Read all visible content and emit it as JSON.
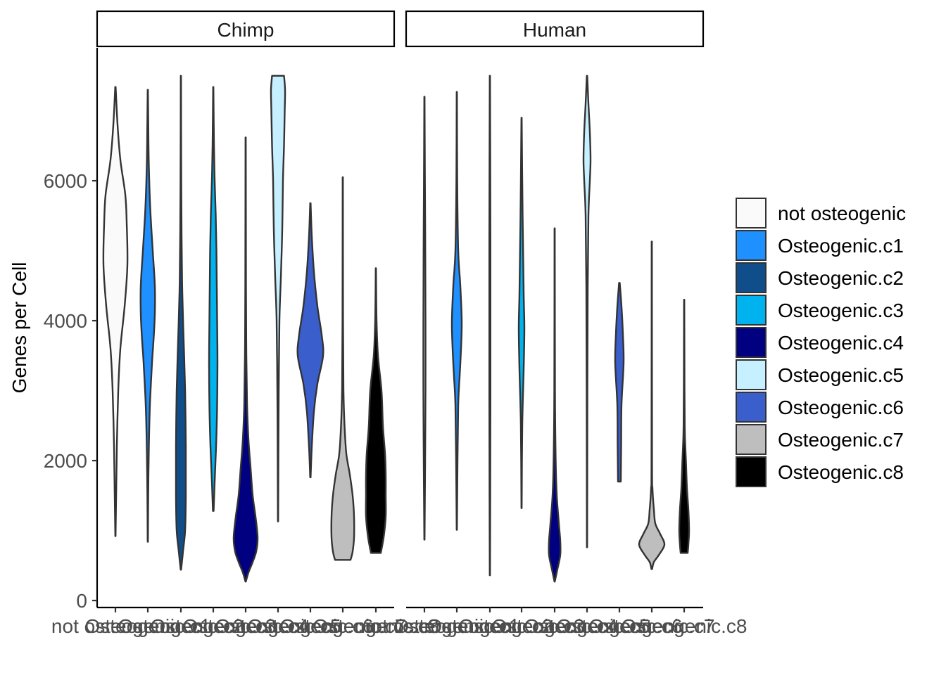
{
  "chart_data": {
    "type": "violin",
    "ylabel": "Genes per Cell",
    "yticks": [
      0,
      2000,
      4000,
      6000
    ],
    "ylim": [
      -100,
      7900
    ],
    "facets": [
      "Chimp",
      "Human"
    ],
    "categories": [
      "not osteogenic",
      "Osteogenic.c1",
      "Osteogenic.c2",
      "Osteogenic.c3",
      "Osteogenic.c4",
      "Osteogenic.c5",
      "Osteogenic.c6",
      "Osteogenic.c7",
      "Osteogenic.c8"
    ],
    "colors": [
      "#FAFAFA",
      "#1E90FF",
      "#104E8B",
      "#00B2EE",
      "#000080",
      "#C6EFFF",
      "#3A5FCD",
      "#BEBEBE",
      "#000000"
    ],
    "legend": {
      "position": "right"
    },
    "panels": [
      {
        "facet": "Chimp",
        "violins": [
          {
            "category": "not osteogenic",
            "profile": [
              [
                920,
                0.2
              ],
              [
                1500,
                1
              ],
              [
                2200,
                2
              ],
              [
                3000,
                4
              ],
              [
                3600,
                7
              ],
              [
                4200,
                13
              ],
              [
                4800,
                17
              ],
              [
                5400,
                16
              ],
              [
                5800,
                14
              ],
              [
                6300,
                7
              ],
              [
                6800,
                3
              ],
              [
                7340,
                0.3
              ]
            ]
          },
          {
            "category": "Osteogenic.c1",
            "profile": [
              [
                840,
                0.2
              ],
              [
                1500,
                0.6
              ],
              [
                2200,
                1.5
              ],
              [
                2800,
                3
              ],
              [
                3400,
                6
              ],
              [
                3700,
                8
              ],
              [
                4100,
                10
              ],
              [
                4500,
                10
              ],
              [
                5000,
                7
              ],
              [
                5600,
                3.5
              ],
              [
                6200,
                1.5
              ],
              [
                6800,
                0.7
              ],
              [
                7300,
                0.2
              ]
            ]
          },
          {
            "category": "Osteogenic.c2",
            "profile": [
              [
                440,
                0.3
              ],
              [
                700,
                3
              ],
              [
                1000,
                6
              ],
              [
                1500,
                7
              ],
              [
                2200,
                7
              ],
              [
                3000,
                6
              ],
              [
                3700,
                4
              ],
              [
                4400,
                2
              ],
              [
                5200,
                1
              ],
              [
                6400,
                0.4
              ],
              [
                7500,
                0.2
              ]
            ]
          },
          {
            "category": "Osteogenic.c3",
            "profile": [
              [
                1280,
                0.5
              ],
              [
                1700,
                2
              ],
              [
                2200,
                4
              ],
              [
                2800,
                5.5
              ],
              [
                3400,
                6
              ],
              [
                4000,
                5.5
              ],
              [
                4500,
                5
              ],
              [
                5000,
                4.5
              ],
              [
                5500,
                3.5
              ],
              [
                6000,
                2
              ],
              [
                6500,
                1
              ],
              [
                7340,
                0.2
              ]
            ]
          },
          {
            "category": "Osteogenic.c4",
            "profile": [
              [
                270,
                0.3
              ],
              [
                400,
                4
              ],
              [
                550,
                10
              ],
              [
                700,
                15
              ],
              [
                900,
                17
              ],
              [
                1200,
                14
              ],
              [
                1500,
                10
              ],
              [
                1900,
                7
              ],
              [
                2300,
                4
              ],
              [
                2800,
                2
              ],
              [
                3500,
                1
              ],
              [
                4500,
                0.5
              ],
              [
                6620,
                0.2
              ]
            ]
          },
          {
            "category": "Osteogenic.c5",
            "profile": [
              [
                1130,
                0.2
              ],
              [
                2000,
                0.5
              ],
              [
                3000,
                1
              ],
              [
                4000,
                2
              ],
              [
                4600,
                4
              ],
              [
                5300,
                6
              ],
              [
                6000,
                7
              ],
              [
                6500,
                8.5
              ],
              [
                7000,
                9.5
              ],
              [
                7300,
                10
              ],
              [
                7500,
                8.5
              ]
            ]
          },
          {
            "category": "Osteogenic.c6",
            "profile": [
              [
                1760,
                0.3
              ],
              [
                2200,
                2
              ],
              [
                2700,
                5
              ],
              [
                3100,
                10
              ],
              [
                3500,
                18
              ],
              [
                3800,
                16
              ],
              [
                4200,
                10
              ],
              [
                4700,
                5
              ],
              [
                5200,
                2
              ],
              [
                5680,
                0.3
              ]
            ]
          },
          {
            "category": "Osteogenic.c7",
            "profile": [
              [
                580,
                11
              ],
              [
                700,
                14
              ],
              [
                900,
                16
              ],
              [
                1200,
                16
              ],
              [
                1500,
                14
              ],
              [
                1800,
                10
              ],
              [
                2100,
                5
              ],
              [
                2500,
                2.5
              ],
              [
                3000,
                1
              ],
              [
                4000,
                0.4
              ],
              [
                6050,
                0.2
              ]
            ]
          },
          {
            "category": "Osteogenic.c8",
            "profile": [
              [
                680,
                7
              ],
              [
                900,
                11
              ],
              [
                1200,
                14
              ],
              [
                1500,
                14
              ],
              [
                1800,
                14
              ],
              [
                2100,
                13
              ],
              [
                2500,
                10
              ],
              [
                3000,
                8
              ],
              [
                3500,
                3
              ],
              [
                4000,
                1
              ],
              [
                4750,
                0.2
              ]
            ]
          }
        ]
      },
      {
        "facet": "Human",
        "violins": [
          {
            "category": "not osteogenic",
            "profile": [
              [
                870,
                0.2
              ],
              [
                2000,
                1
              ],
              [
                3000,
                1.5
              ],
              [
                4000,
                1.5
              ],
              [
                5000,
                1.2
              ],
              [
                6000,
                0.7
              ],
              [
                7200,
                0.2
              ]
            ]
          },
          {
            "category": "Osteogenic.c1",
            "profile": [
              [
                1010,
                0.2
              ],
              [
                2000,
                1
              ],
              [
                2800,
                2
              ],
              [
                3200,
                4
              ],
              [
                3600,
                6
              ],
              [
                4000,
                7
              ],
              [
                4500,
                5
              ],
              [
                5000,
                2
              ],
              [
                6000,
                0.6
              ],
              [
                7270,
                0.2
              ]
            ]
          },
          {
            "category": "Osteogenic.c2",
            "profile": [
              [
                360,
                0.2
              ],
              [
                1500,
                0.5
              ],
              [
                3000,
                0.8
              ],
              [
                5000,
                0.8
              ],
              [
                7500,
                0.2
              ]
            ]
          },
          {
            "category": "Osteogenic.c3",
            "profile": [
              [
                1320,
                0.2
              ],
              [
                2500,
                1
              ],
              [
                3300,
                3
              ],
              [
                3900,
                4
              ],
              [
                4400,
                3
              ],
              [
                5500,
                1.5
              ],
              [
                6900,
                0.2
              ]
            ]
          },
          {
            "category": "Osteogenic.c4",
            "profile": [
              [
                270,
                0.2
              ],
              [
                450,
                4
              ],
              [
                650,
                8
              ],
              [
                850,
                8
              ],
              [
                1100,
                6
              ],
              [
                1500,
                3
              ],
              [
                2000,
                1.5
              ],
              [
                3000,
                0.5
              ],
              [
                5320,
                0.2
              ]
            ]
          },
          {
            "category": "Osteogenic.c5",
            "profile": [
              [
                760,
                0.2
              ],
              [
                3000,
                0.5
              ],
              [
                4500,
                1
              ],
              [
                5500,
                2
              ],
              [
                6000,
                4
              ],
              [
                6300,
                5
              ],
              [
                6700,
                4
              ],
              [
                7100,
                2
              ],
              [
                7500,
                0.3
              ]
            ]
          },
          {
            "category": "Osteogenic.c6",
            "profile": [
              [
                1700,
                2
              ],
              [
                2200,
                2.5
              ],
              [
                2800,
                3
              ],
              [
                3400,
                6
              ],
              [
                3800,
                5
              ],
              [
                4200,
                3
              ],
              [
                4540,
                0.5
              ]
            ]
          },
          {
            "category": "Osteogenic.c7",
            "profile": [
              [
                450,
                0.5
              ],
              [
                550,
                3
              ],
              [
                650,
                10
              ],
              [
                800,
                18
              ],
              [
                950,
                12
              ],
              [
                1100,
                5
              ],
              [
                1300,
                3
              ],
              [
                1600,
                1
              ],
              [
                2000,
                0.4
              ],
              [
                5130,
                0.2
              ]
            ]
          },
          {
            "category": "Osteogenic.c8",
            "profile": [
              [
                680,
                5
              ],
              [
                800,
                6
              ],
              [
                1000,
                7
              ],
              [
                1300,
                6
              ],
              [
                1600,
                4
              ],
              [
                2000,
                2.5
              ],
              [
                2400,
                1
              ],
              [
                3000,
                0.5
              ],
              [
                4300,
                0.2
              ]
            ]
          }
        ]
      }
    ]
  }
}
